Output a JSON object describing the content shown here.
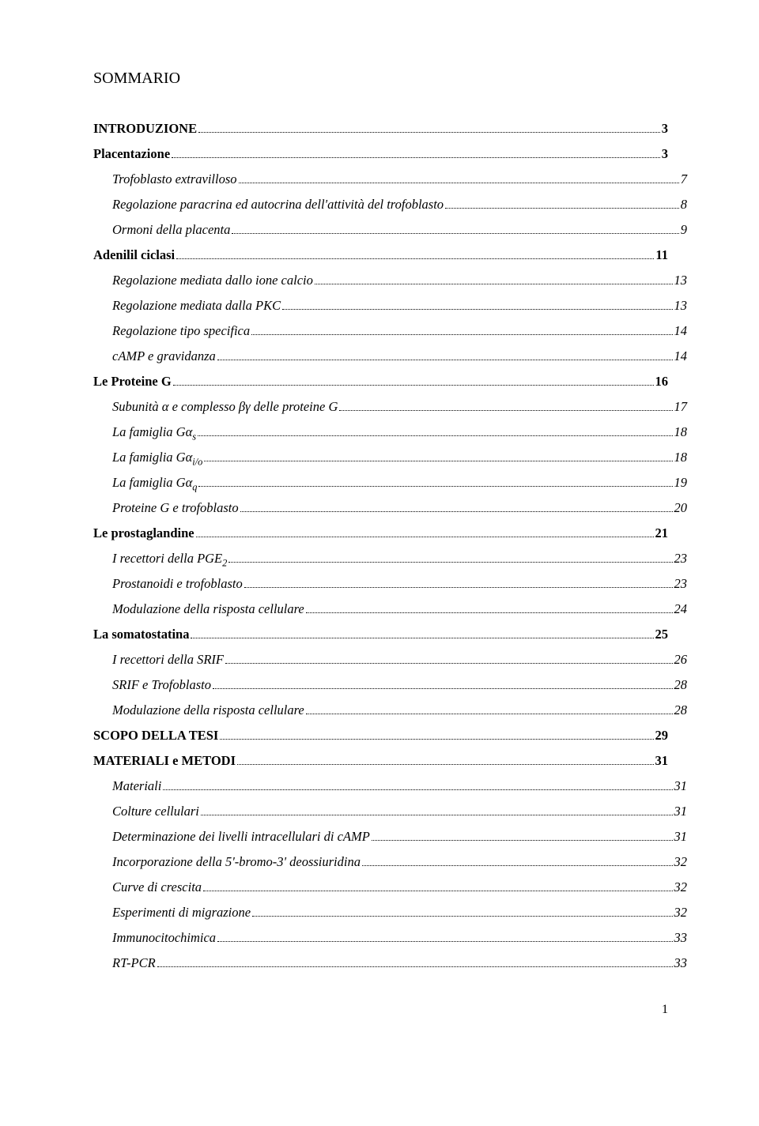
{
  "title": "SOMMARIO",
  "footer_page": "1",
  "text_color": "#000000",
  "background_color": "#ffffff",
  "font_family": "Times New Roman",
  "toc": [
    {
      "level": 0,
      "label": "INTRODUZIONE",
      "page": "3"
    },
    {
      "level": 1,
      "label": "Placentazione",
      "page": "3"
    },
    {
      "level": 2,
      "label": "Trofoblasto extravilloso",
      "page": "7"
    },
    {
      "level": 2,
      "label": "Regolazione paracrina ed autocrina dell'attività del trofoblasto",
      "page": " 8"
    },
    {
      "level": 2,
      "label": "Ormoni della placenta",
      "page": " 9"
    },
    {
      "level": 1,
      "label": "Adenilil ciclasi",
      "page": "11"
    },
    {
      "level": 2,
      "label": "Regolazione mediata dallo ione calcio",
      "page": " 13"
    },
    {
      "level": 2,
      "label": "Regolazione mediata dalla PKC",
      "page": " 13"
    },
    {
      "level": 2,
      "label": "Regolazione tipo specifica",
      "page": " 14"
    },
    {
      "level": 2,
      "label": "cAMP e gravidanza",
      "page": " 14"
    },
    {
      "level": 1,
      "label": "Le Proteine G",
      "page": "16"
    },
    {
      "level": 2,
      "label_html": "Subunità α e complesso βγ<span class='nonitalic'> </span>delle proteine G",
      "page": " 17"
    },
    {
      "level": 2,
      "label_html": "La famiglia Gα<span class='sub'>s</span>",
      "page": " 18"
    },
    {
      "level": 2,
      "label_html": "La famiglia Gα<span class='sub'>i/o</span>",
      "page": " 18"
    },
    {
      "level": 2,
      "label_html": "La famiglia Gα<span class='sub'>q</span>",
      "page": " 19"
    },
    {
      "level": 2,
      "label": "Proteine G e trofoblasto",
      "page": " 20"
    },
    {
      "level": 1,
      "label": "Le prostaglandine",
      "page": "21"
    },
    {
      "level": 2,
      "label_html": "I recettori della PGE<span class='sub'>2</span>",
      "page": " 23"
    },
    {
      "level": 2,
      "label": "Prostanoidi e trofoblasto",
      "page": " 23"
    },
    {
      "level": 2,
      "label": "Modulazione della risposta cellulare",
      "page": " 24"
    },
    {
      "level": 1,
      "label": "La somatostatina",
      "page": "25"
    },
    {
      "level": 2,
      "label": "I recettori della SRIF",
      "page": " 26"
    },
    {
      "level": 2,
      "label": "SRIF e Trofoblasto",
      "page": " 28"
    },
    {
      "level": 2,
      "label": "Modulazione della risposta cellulare",
      "page": " 28"
    },
    {
      "level": 0,
      "label": "SCOPO DELLA TESI",
      "page": "29"
    },
    {
      "level": 0,
      "label": "MATERIALI e METODI",
      "page": "31"
    },
    {
      "level": 2,
      "label": "Materiali",
      "page": " 31"
    },
    {
      "level": 2,
      "label": "Colture cellulari",
      "page": " 31"
    },
    {
      "level": 2,
      "label": "Determinazione dei livelli intracellulari di cAMP",
      "page": " 31"
    },
    {
      "level": 2,
      "label": "Incorporazione della 5'-bromo-3' deossiuridina",
      "page": " 32"
    },
    {
      "level": 2,
      "label": "Curve di crescita",
      "page": " 32"
    },
    {
      "level": 2,
      "label": "Esperimenti di migrazione",
      "page": " 32"
    },
    {
      "level": 2,
      "label": "Immunocitochimica",
      "page": " 33"
    },
    {
      "level": 2,
      "label": "RT-PCR",
      "page": " 33"
    }
  ]
}
